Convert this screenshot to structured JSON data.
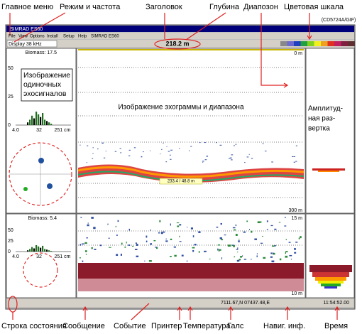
{
  "annotations": {
    "top": [
      "Главное меню",
      "Режим и частота",
      "Заголовок",
      "Глубина",
      "Диапозон",
      "Цветовая шкала"
    ],
    "figure_id": "(CD5724A/GIF)",
    "bottom": [
      "Строка состояния",
      "Сообщение",
      "Событие",
      "Принтер",
      "Температура",
      "Галс",
      "Навиг. инф.",
      "Время"
    ]
  },
  "window": {
    "title": "SIMRAD ES60",
    "menu": [
      "File",
      "View",
      "Options",
      "Install",
      "Setup",
      "Help",
      "SIMRAD ES60"
    ],
    "mode": "Display 38 kHz",
    "depth": "218.2 m",
    "upper": {
      "biomass": "Biomass: 17.5",
      "y_ticks": [
        "50",
        "25",
        "0"
      ],
      "x_ticks": [
        "4.0",
        "32",
        "251 cm"
      ],
      "single_echo_label": [
        "Изображение",
        "одиночных",
        "эхосигналов"
      ],
      "echogram_label": "Изображение эхограммы и диапазона",
      "range_top": "0 m",
      "range_bottom": "300 m",
      "bottom_readout": "233.4 / 48.8 m",
      "amplitude_label": [
        "Амплитуд-",
        "ная раз-",
        "вертка"
      ]
    },
    "lower": {
      "biomass": "Biomass: 5.4",
      "y_ticks": [
        "50",
        "25",
        "0"
      ],
      "x_ticks": [
        "4.0",
        "32",
        "251 cm"
      ],
      "range_top": "15 m",
      "range_bottom": "10 m"
    },
    "status": {
      "navigation": "7111.67,N 07437.48,E",
      "time": "11:54:52.00"
    }
  }
}
